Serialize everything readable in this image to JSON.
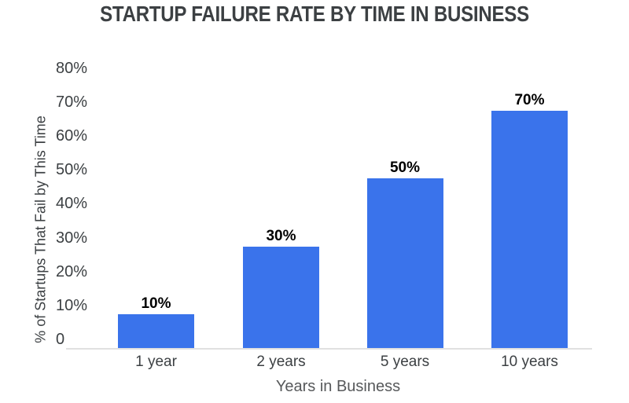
{
  "chart_data": {
    "type": "bar",
    "title": "STARTUP FAILURE RATE BY TIME IN BUSINESS",
    "categories": [
      "1 year",
      "2 years",
      "5 years",
      "10 years"
    ],
    "values": [
      10,
      30,
      50,
      70
    ],
    "value_labels": [
      "10%",
      "30%",
      "50%",
      "70%"
    ],
    "xlabel": "Years in Business",
    "ylabel": "% of Startups That Fail by This Time",
    "ylim": [
      0,
      80
    ],
    "ytick_step": 10,
    "ytick_labels": [
      "0",
      "10%",
      "20%",
      "30%",
      "40%",
      "50%",
      "60%",
      "70%",
      "80%"
    ],
    "grid": false,
    "legend": "none",
    "colors": {
      "bar": "#3A73EB",
      "title_text": "#3C4043",
      "axis_text": "#3C4043",
      "xlabel_text": "#57595B",
      "value_label_text": "#000000",
      "baseline": "#E0E0E0"
    }
  }
}
